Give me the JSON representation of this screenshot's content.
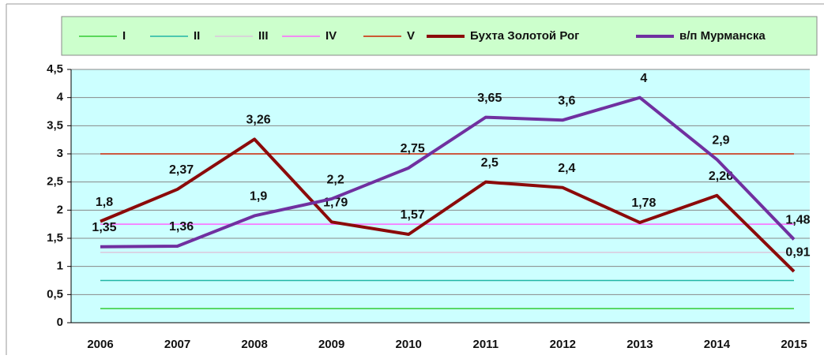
{
  "chart_data": {
    "type": "line",
    "categories": [
      "2006",
      "2007",
      "2008",
      "2009",
      "2010",
      "2011",
      "2012",
      "2013",
      "2014",
      "2015"
    ],
    "series": [
      {
        "name": "I",
        "color": "#33cc33",
        "values": [
          0.25,
          0.25,
          0.25,
          0.25,
          0.25,
          0.25,
          0.25,
          0.25,
          0.25,
          0.25
        ]
      },
      {
        "name": "II",
        "color": "#22b5a5",
        "values": [
          0.75,
          0.75,
          0.75,
          0.75,
          0.75,
          0.75,
          0.75,
          0.75,
          0.75,
          0.75
        ]
      },
      {
        "name": "III",
        "color": "#dcc6dc",
        "values": [
          1.25,
          1.25,
          1.25,
          1.25,
          1.25,
          1.25,
          1.25,
          1.25,
          1.25,
          1.25
        ]
      },
      {
        "name": "IV",
        "color": "#ff66ff",
        "values": [
          1.75,
          1.75,
          1.75,
          1.75,
          1.75,
          1.75,
          1.75,
          1.75,
          1.75,
          1.75
        ]
      },
      {
        "name": "V",
        "color": "#cc2200",
        "values": [
          3,
          3,
          3,
          3,
          3,
          3,
          3,
          3,
          3,
          3
        ]
      },
      {
        "name": "Бухта Золотой Рог",
        "color": "#8b0a0a",
        "values": [
          1.8,
          2.37,
          3.26,
          1.79,
          1.57,
          2.5,
          2.4,
          1.78,
          2.26,
          0.91
        ],
        "value_labels": [
          "1,8",
          "2,37",
          "3,26",
          "1,79",
          "1,57",
          "2,5",
          "2,4",
          "1,78",
          "2,26",
          "0,91"
        ]
      },
      {
        "name": "в/п Мурманска",
        "color": "#7030a0",
        "values": [
          1.35,
          1.36,
          1.9,
          2.2,
          2.75,
          3.65,
          3.6,
          4,
          2.9,
          1.48
        ],
        "value_labels": [
          "1,35",
          "1,36",
          "1,9",
          "2,2",
          "2,75",
          "3,65",
          "3,6",
          "4",
          "2,9",
          "1,48"
        ]
      }
    ],
    "ylim": [
      0,
      4.5
    ],
    "yticks": [
      0,
      {
        "value": 0.5,
        "label": "0,5"
      },
      1,
      {
        "value": 1.5,
        "label": "1,5"
      },
      2,
      {
        "value": 2.5,
        "label": "2,5"
      },
      3,
      {
        "value": 3.5,
        "label": "3,5"
      },
      4,
      {
        "value": 4.5,
        "label": "4,5"
      }
    ],
    "grid": true,
    "legend": "top"
  }
}
